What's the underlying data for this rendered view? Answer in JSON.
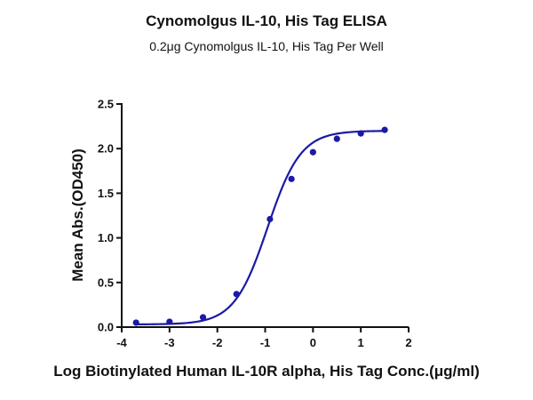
{
  "chart_data": {
    "type": "scatter",
    "title": "Cynomolgus IL-10, His Tag ELISA",
    "subtitle": "0.2μg Cynomolgus IL-10, His Tag Per Well",
    "xlabel": "Log Biotinylated Human IL-10R alpha, His Tag Conc.(μg/ml)",
    "ylabel": "Mean Abs.(OD450)",
    "xlim": [
      -4,
      2
    ],
    "ylim": [
      0,
      2.5
    ],
    "x_ticks": [
      -4,
      -3,
      -2,
      -1,
      0,
      1,
      2
    ],
    "x_tick_labels": [
      "-4",
      "-3",
      "-2",
      "-1",
      "0",
      "1",
      "2"
    ],
    "y_ticks": [
      0.0,
      0.5,
      1.0,
      1.5,
      2.0,
      2.5
    ],
    "y_tick_labels": [
      "0.0",
      "0.5",
      "1.0",
      "1.5",
      "2.0",
      "2.5"
    ],
    "grid": false,
    "legend": "none",
    "series": [
      {
        "points": [
          {
            "x": -3.7,
            "y": 0.05
          },
          {
            "x": -3.0,
            "y": 0.06
          },
          {
            "x": -2.3,
            "y": 0.11
          },
          {
            "x": -1.6,
            "y": 0.37
          },
          {
            "x": -0.9,
            "y": 1.21
          },
          {
            "x": -0.45,
            "y": 1.66
          },
          {
            "x": 0.0,
            "y": 1.96
          },
          {
            "x": 0.5,
            "y": 2.11
          },
          {
            "x": 1.0,
            "y": 2.17
          },
          {
            "x": 1.5,
            "y": 2.21
          }
        ],
        "fit": {
          "model": "4PL",
          "bottom": 0.03,
          "top": 2.2,
          "logEC50": -0.95,
          "hill": 1.25
        },
        "color": "#1a1aa6"
      }
    ]
  }
}
